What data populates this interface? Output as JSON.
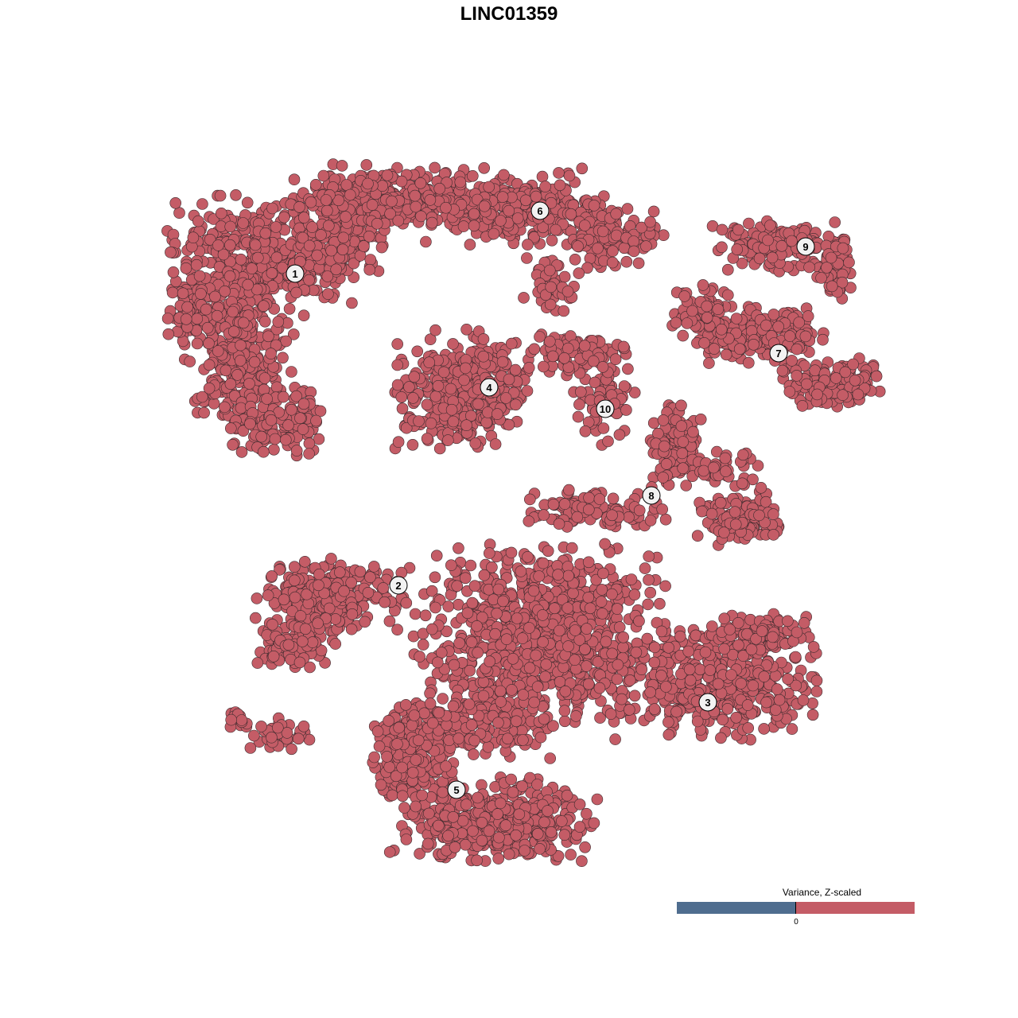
{
  "chart_data": {
    "type": "scatter",
    "title": "LINC01359",
    "xlabel": "",
    "ylabel": "",
    "axes_visible": false,
    "grid": false,
    "point_color": "#c45c66",
    "point_edge_color": "#3d2b2e",
    "cluster_labels": [
      "1",
      "2",
      "3",
      "4",
      "5",
      "6",
      "7",
      "8",
      "9",
      "10"
    ],
    "legend": {
      "title": "Variance, Z-scaled",
      "placement": "bottom-right",
      "low_color": "#4f6d8f",
      "high_color": "#c45c66",
      "tick_label": "0"
    }
  }
}
